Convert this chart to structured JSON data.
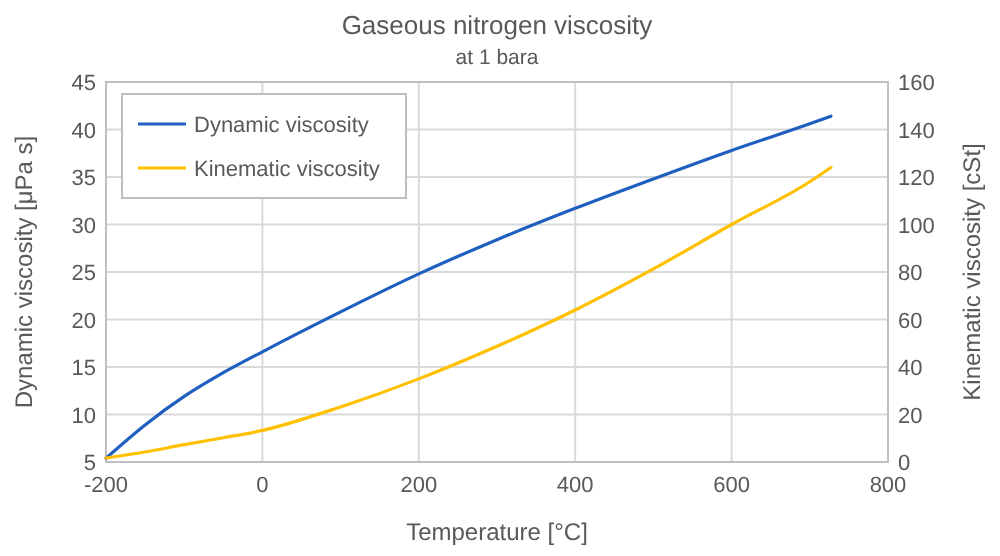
{
  "chart_data": {
    "type": "line",
    "title": "Gaseous nitrogen viscosity",
    "subtitle": "at 1 bara",
    "xlabel": "Temperature [°C]",
    "ylabel": "Dynamic viscosity [μPa s]",
    "y2label": "Kinematic viscosity [cSt]",
    "x": [
      -200,
      -150,
      -100,
      -50,
      0,
      100,
      200,
      300,
      400,
      500,
      600,
      700,
      727
    ],
    "series": [
      {
        "name": "Dynamic viscosity",
        "color": "#1f5fc0",
        "values": [
          5.4,
          8.9,
          11.9,
          14.4,
          16.6,
          20.8,
          24.8,
          28.4,
          31.7,
          34.8,
          37.8,
          40.6,
          41.4
        ]
      },
      {
        "name": "Kinematic viscosity",
        "color": "#ffc000",
        "axis": "y2",
        "values": [
          1.7,
          4.2,
          7.3,
          10.2,
          13.3,
          23.2,
          35,
          48.7,
          64,
          81.3,
          100,
          118,
          124
        ]
      }
    ],
    "xlim": [
      -200,
      800
    ],
    "xticks": [
      -200,
      0,
      200,
      400,
      600,
      800
    ],
    "ylim": [
      5,
      45
    ],
    "yticks": [
      5,
      10,
      15,
      20,
      25,
      30,
      35,
      40,
      45
    ],
    "y2lim": [
      0,
      160
    ],
    "y2ticks": [
      0,
      20,
      40,
      60,
      80,
      100,
      120,
      140,
      160
    ],
    "grid": true,
    "legend": "top left",
    "line_style": "solid"
  }
}
